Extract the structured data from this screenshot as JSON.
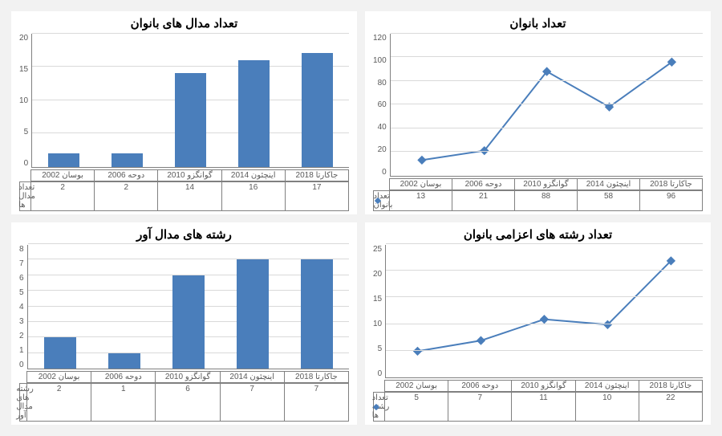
{
  "background_color": "#f2f2f2",
  "panel_bg": "#ffffff",
  "series_color": "#4a7ebb",
  "grid_color": "#d9d9d9",
  "axis_color": "#808080",
  "text_color": "#595959",
  "categories": [
    "بوسان 2002",
    "دوحه 2006",
    "گوانگزو 2010",
    "اینچئون 2014",
    "جاکارتا 2018"
  ],
  "chart_tl": {
    "title": "تعداد بانوان",
    "title_fontsize": 15,
    "type": "line",
    "values": [
      13,
      21,
      88,
      58,
      96
    ],
    "ylim": [
      0,
      120
    ],
    "yticks": [
      0,
      20,
      40,
      60,
      80,
      100,
      120
    ],
    "legend_label": "تعداد بانوان",
    "axis_fontsize": 10,
    "line_width": 2,
    "marker": "diamond",
    "marker_size": 7
  },
  "chart_tr": {
    "title": "تعداد مدال های بانوان",
    "title_fontsize": 15,
    "type": "bar",
    "values": [
      2,
      2,
      14,
      16,
      17
    ],
    "ylim": [
      0,
      20
    ],
    "yticks": [
      0,
      5,
      10,
      15,
      20
    ],
    "legend_label": "تعداد مدال ها",
    "axis_fontsize": 10,
    "bar_width": 0.5
  },
  "chart_bl": {
    "title": "تعداد رشته های اعزامی بانوان",
    "title_fontsize": 15,
    "type": "line",
    "values": [
      5,
      7,
      11,
      10,
      22
    ],
    "ylim": [
      0,
      25
    ],
    "yticks": [
      0,
      5,
      10,
      15,
      20,
      25
    ],
    "legend_label": "تعداد رشته ها",
    "axis_fontsize": 10,
    "line_width": 2,
    "marker": "diamond",
    "marker_size": 7
  },
  "chart_br": {
    "title": "رشته های مدال آور",
    "title_fontsize": 15,
    "type": "bar",
    "values": [
      2,
      1,
      6,
      7,
      7
    ],
    "ylim": [
      0,
      8
    ],
    "yticks": [
      0,
      1,
      2,
      3,
      4,
      5,
      6,
      7,
      8
    ],
    "legend_label": "رشته های مدال آور",
    "axis_fontsize": 10,
    "bar_width": 0.5
  }
}
